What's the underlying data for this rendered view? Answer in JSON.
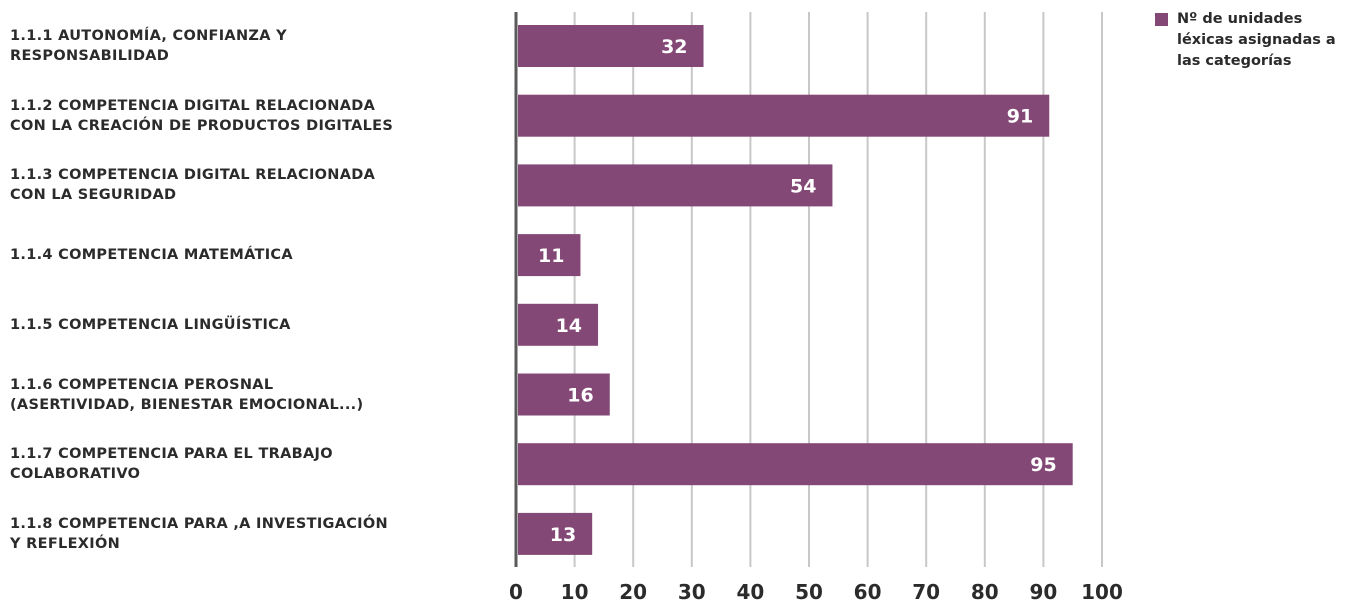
{
  "chart_data": {
    "type": "bar",
    "orientation": "horizontal",
    "categories": [
      "1.1.1 AUTONOMÍA, CONFIANZA Y\nRESPONSABILIDAD",
      "1.1.2 COMPETENCIA DIGITAL RELACIONADA\nCON LA CREACIÓN DE PRODUCTOS DIGITALES",
      "1.1.3 COMPETENCIA DIGITAL RELACIONADA\nCON LA SEGURIDAD",
      "1.1.4 COMPETENCIA MATEMÁTICA",
      "1.1.5 COMPETENCIA LINGÜÍSTICA",
      "1.1.6 COMPETENCIA PEROSNAL\n (ASERTIVIDAD, BIENESTAR EMOCIONAL...)",
      "1.1.7 COMPETENCIA PARA EL TRABAJO\nCOLABORATIVO",
      "1.1.8 COMPETENCIA PARA ,A INVESTIGACIÓN\nY REFLEXIÓN"
    ],
    "series": [
      {
        "name": "Nº de unidades léxicas asignadas a las categorías",
        "values": [
          32,
          91,
          54,
          11,
          14,
          16,
          95,
          13
        ]
      }
    ],
    "xlim": [
      0,
      100
    ],
    "x_ticks": [
      0,
      10,
      20,
      30,
      40,
      50,
      60,
      70,
      80,
      90,
      100
    ],
    "grid": "vertical",
    "legend_position": "top-right",
    "data_labels": "inside-end",
    "title": "",
    "xlabel": "",
    "ylabel": ""
  },
  "colors": {
    "bar": "#834876",
    "bar_label": "#ffffff",
    "grid": "#c8c8c8",
    "axis": "#5a5a5a",
    "text": "#2b2b2b"
  }
}
